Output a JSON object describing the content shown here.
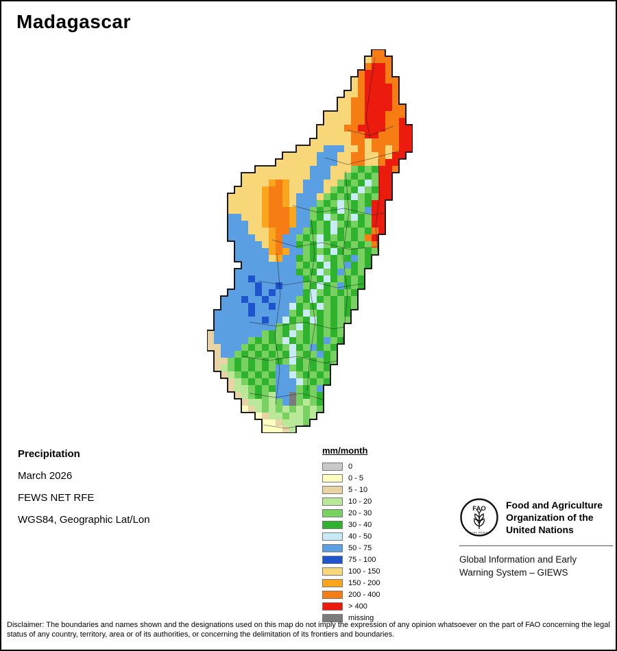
{
  "title": "Madagascar",
  "info": {
    "heading": "Precipitation",
    "date": "March 2026",
    "source": "FEWS NET RFE",
    "projection": "WGS84, Geographic Lat/Lon"
  },
  "legend": {
    "title": "mm/month",
    "entries": [
      {
        "label": "0",
        "color": "#c8c8c8"
      },
      {
        "label": "0 - 5",
        "color": "#ffffc2"
      },
      {
        "label": "5 - 10",
        "color": "#e8d3a4"
      },
      {
        "label": "10 - 20",
        "color": "#b8e898"
      },
      {
        "label": "20 - 30",
        "color": "#79d162"
      },
      {
        "label": "30 - 40",
        "color": "#2fb32f"
      },
      {
        "label": "40 - 50",
        "color": "#c8ebf5"
      },
      {
        "label": "50 - 75",
        "color": "#5b9fe3"
      },
      {
        "label": "75 - 100",
        "color": "#1f55cc"
      },
      {
        "label": "100 - 150",
        "color": "#f8d778"
      },
      {
        "label": "150 - 200",
        "color": "#f9a51e"
      },
      {
        "label": "200 - 400",
        "color": "#f57d14"
      },
      {
        "label": "> 400",
        "color": "#eb1c0e"
      },
      {
        "label": "missing",
        "color": "#7b7b7b"
      }
    ]
  },
  "footer": {
    "fao_logo_text": "FAO",
    "fao_motto": "FIAT PANIS",
    "org_line1": "Food and Agriculture",
    "org_line2": "Organization of the",
    "org_line3": "United Nations",
    "giews_line1": "Global Information and Early",
    "giews_line2": "Warning System – GIEWS"
  },
  "disclaimer": "Disclaimer: The boundaries and names shown and the designations used on this map do not imply the expression of any opinion whatsoever on the part of FAO concerning the legal status of any country, territory, area or of its authorities, or concerning the delimitation of its frontiers and boundaries.",
  "map": {
    "cell": 10,
    "palette": {
      "g": "#c8c8c8",
      "y": "#ffffc2",
      "t": "#e8d3a4",
      "l": "#b8e898",
      "m": "#79d162",
      "G": "#2fb32f",
      "c": "#c8ebf5",
      "b": "#5b9fe3",
      "B": "#1f55cc",
      "k": "#f8d778",
      "o": "#f9a51e",
      "O": "#f57d14",
      "r": "#eb1c0e",
      "x": "#7b7b7b"
    },
    "grid": [
      "........................OO....",
      ".......................kOOO...",
      ".......................OrrO...",
      "......................OrrrO...",
      ".....................kOrrrOO..",
      ".....................kOrrrrO..",
      "....................kkOrrrrO..",
      "...................kkOOrrrrO..",
      "...................kkOOrrrrOO.",
      ".................kkkkOOrrrOOO.",
      ".................kkkkOOrrrOOr.",
      "................kkkkOOrrrrOOrr",
      "................kkkkkOOrrOOOrr",
      "...............kkkkkkOOkOOOOrr",
      ".............kkkkbbbkkOkOOkOrr",
      "...........kkkkkbbbkkOOkkOkrr.",
      "..........kkkkkkbbbkkOOkkOrr..",
      ".......kkkkkkkkbbbkkkmGmGrrO..",
      ".....kkkkkkkkkkbbbkkmGmGmrr...",
      ".....kkkkoOokkbbbkkmGmGcmrr...",
      "....kkkkoOOokkbbbkmGmGcmGrr...",
      "...kkkkkoOOokbbbkmGmGcmGmrr...",
      "...kkkkkoOOokbbbmGmcmGmGrr....",
      "...kkkkkoOOOobbmGmGcmGmbrr....",
      "...bbkkkoOOOobbmGcmGmcGmrr....",
      "...bbbkkoOOOobbGmGcmGmGmrr....",
      "...bbbkkkoOObbmGmGcGmGmGOr....",
      "...bbbbkkoObbmGmcGmGmGmOr.....",
      "....bbbbkoObbGmGcmGmGmGmO.....",
      "....bbbbboOobbmGmGcGmGmGm.....",
      "....bbbbbkobbGmGcmGmGbmG......",
      ".....bbbbbbbbmGmGcGmbGmG......",
      "....bbbbbbbbbGmGcmGbmGm.......",
      "....bbBbbbbbbbGmGcGmGmG.......",
      "....bbbBbbBbbbmGcGmbGmG.......",
      "...bbbbBbBbbbbGcmGmGmG........",
      "..bbbBbbBbbbbmGcGmGmGm........",
      "..bbbbBbbBbbcGmGcmGmGm........",
      ".bbbbbBbbbbbmGcmGmGmG.........",
      ".bbbbbbbBbbcGmGcGmGmm.........",
      ".bbbbbbbbbmGmcGmGmGm..........",
      "tbbbbbbbmGmGcmGmGmGm..........",
      "tbbbbbmGmGmcGmGmGbmG..........",
      "ttbbbmGmGmGmcGmbGmG...........",
      ".tbbmGmGmGmGcmGmbGm...........",
      ".ttmGmGmGmGmcGmGmGm...........",
      ".tlmGmGmGmbbmGmGmG............",
      "..tlmGmGmGbbcmGmGm............",
      "...tlmGmGmbbbcmGmG............",
      "...tllmGmGbbbmGmb.............",
      "....tlmGmlbbxmGmG.............",
      ".....tllmlmbxmlmG.............",
      ".....ytlmlmlmlmlm.............",
      ".......ytllmllml..............",
      "........yytlllm...............",
      "........yyytl................."
    ]
  }
}
